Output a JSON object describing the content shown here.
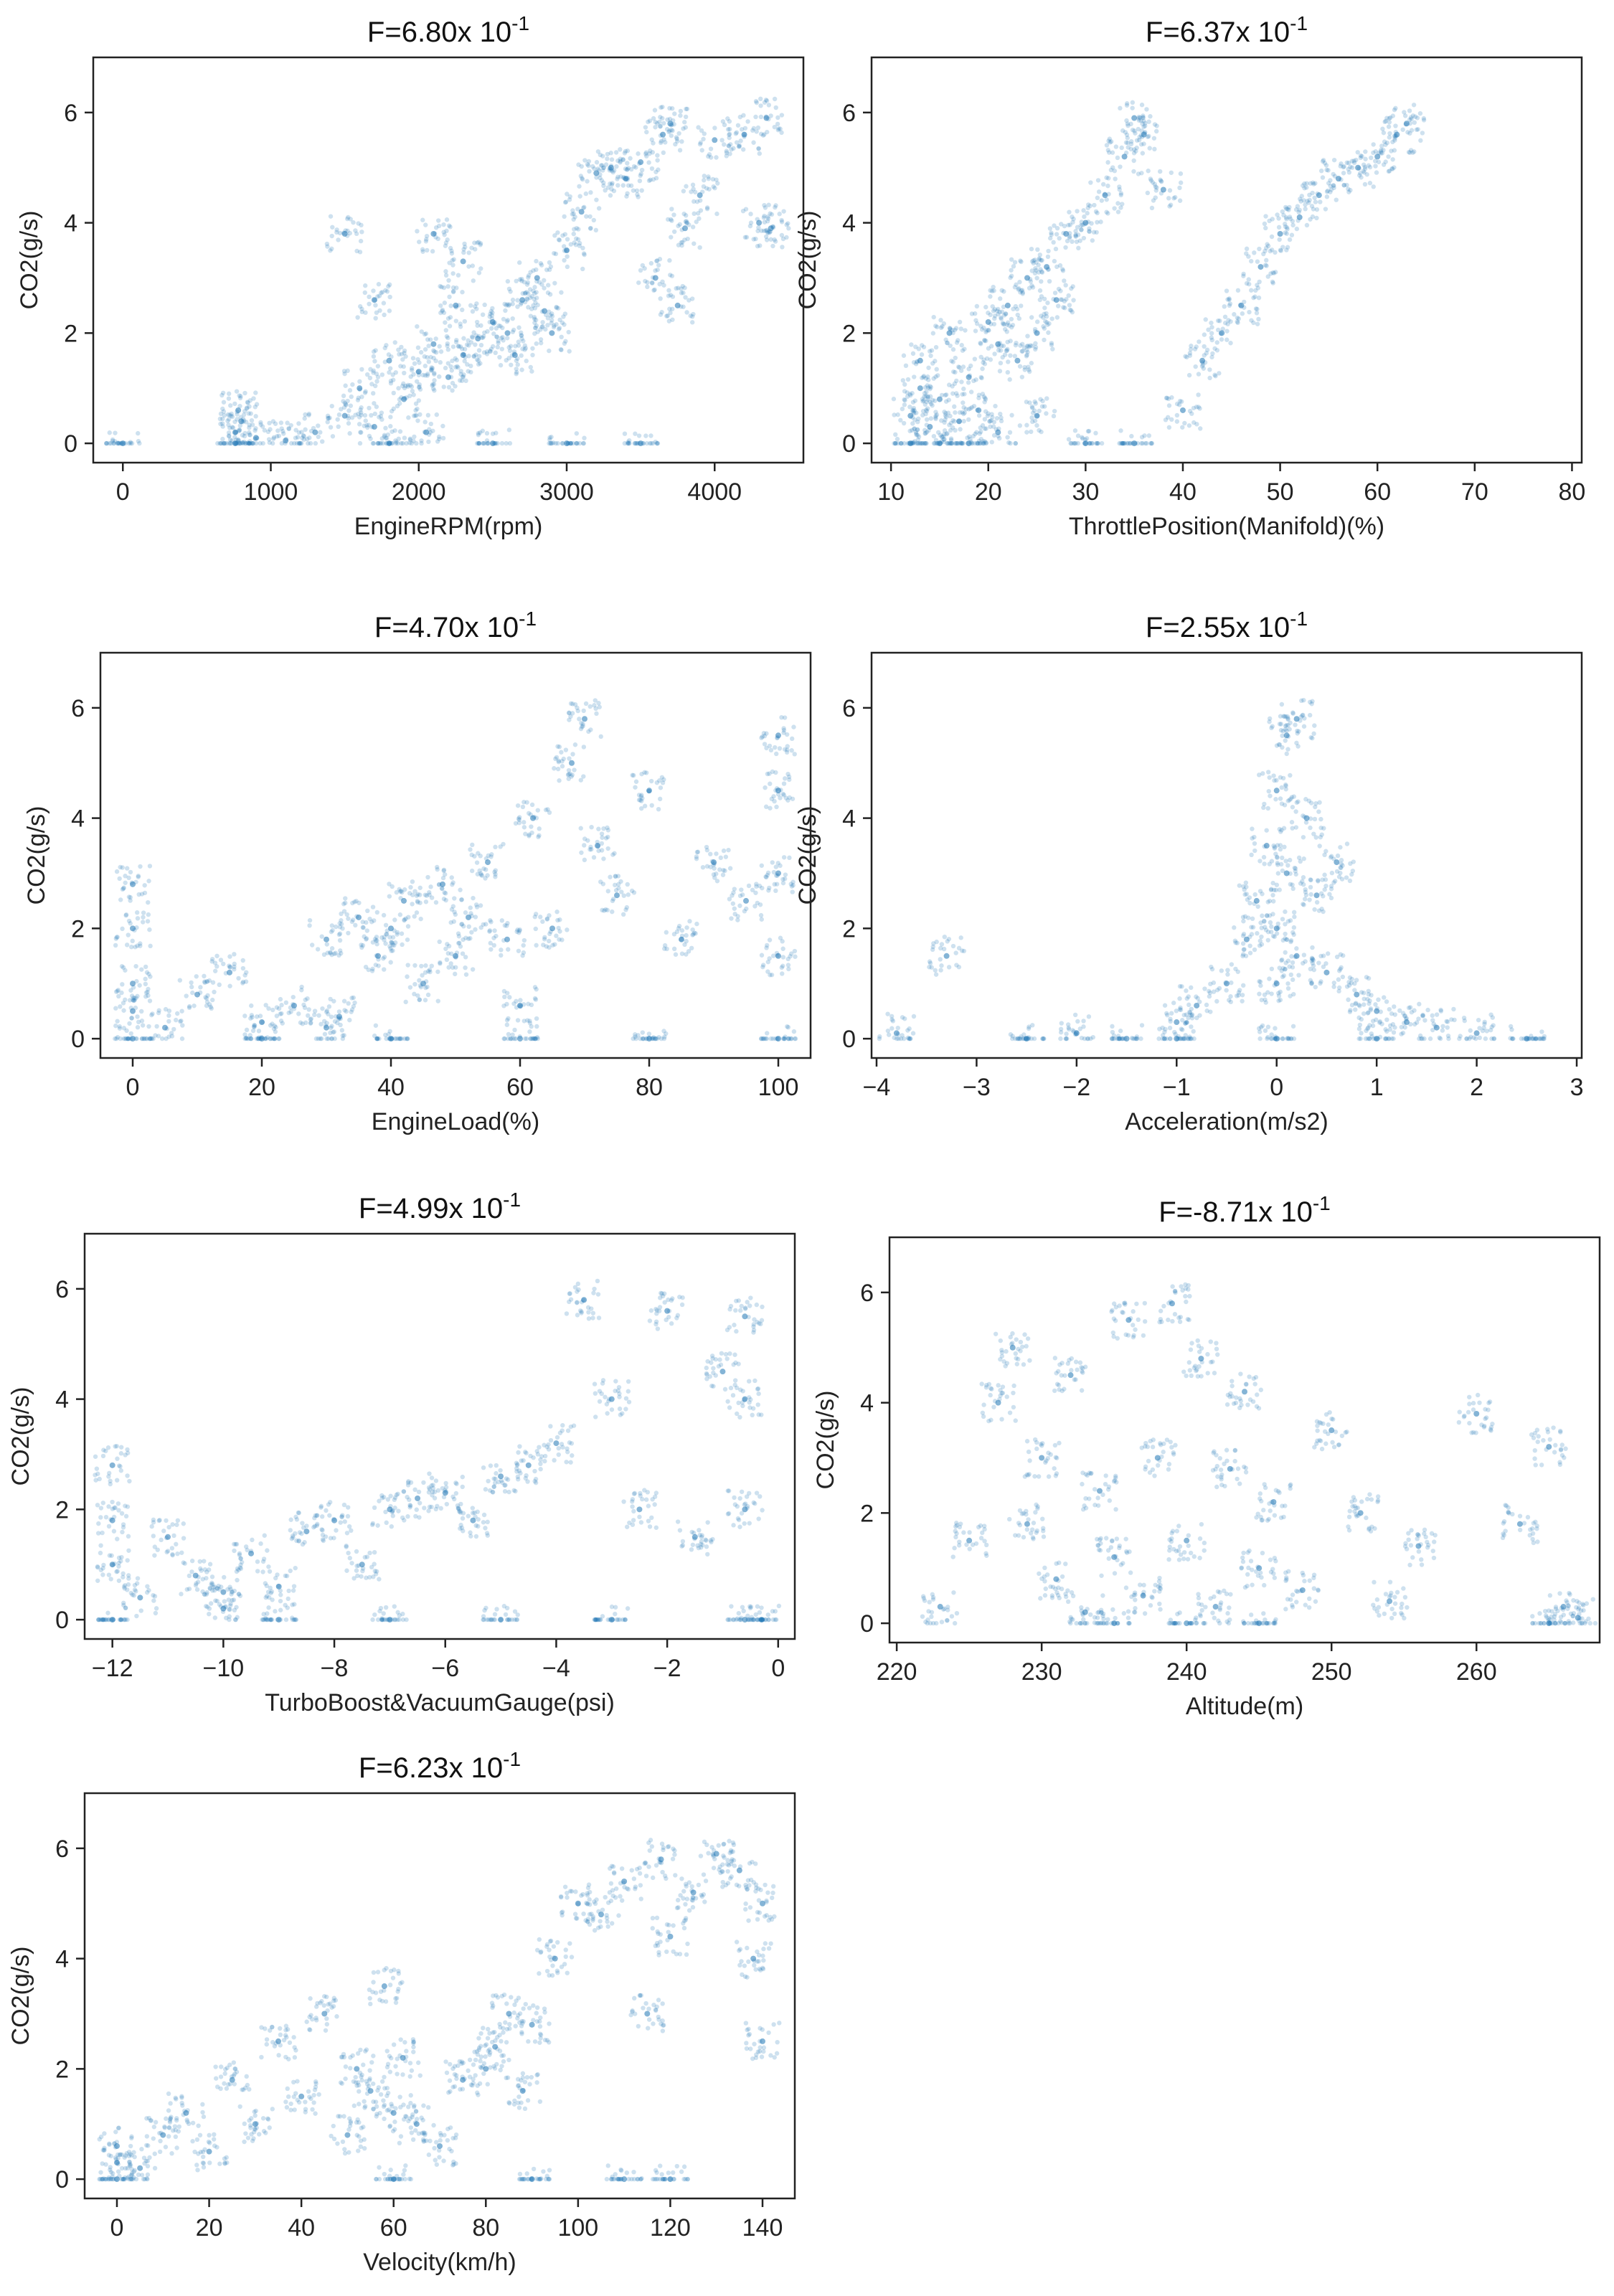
{
  "colors": {
    "points": "#1f77b4",
    "axes": "#222222",
    "background": "#ffffff"
  },
  "ylabel": "CO2(g/s)",
  "chart_data": [
    {
      "type": "scatter",
      "title": "F=6.80",
      "title_suffix": "x 10",
      "title_exponent": "-1",
      "xlabel": "EngineRPM(rpm)",
      "ylabel": "CO2(g/s)",
      "xlim": [
        -200,
        4600
      ],
      "ylim": [
        -0.35,
        7.0
      ],
      "xticks": [
        0,
        1000,
        2000,
        3000,
        4000
      ],
      "yticks": [
        0,
        2,
        4,
        6
      ],
      "points": [
        [
          0,
          0
        ],
        [
          760,
          0
        ],
        [
          760,
          0.2
        ],
        [
          800,
          0.4
        ],
        [
          780,
          0.6
        ],
        [
          900,
          0.1
        ],
        [
          1100,
          0.05
        ],
        [
          1300,
          0.2
        ],
        [
          1500,
          0.5
        ],
        [
          1600,
          1.0
        ],
        [
          1700,
          0.3
        ],
        [
          1800,
          1.5
        ],
        [
          1900,
          0.8
        ],
        [
          2000,
          1.3
        ],
        [
          2050,
          0.2
        ],
        [
          2100,
          1.8
        ],
        [
          2200,
          1.2
        ],
        [
          2250,
          2.5
        ],
        [
          2300,
          1.6
        ],
        [
          2400,
          1.9
        ],
        [
          2500,
          2.2
        ],
        [
          2600,
          2.0
        ],
        [
          2650,
          1.6
        ],
        [
          2700,
          2.6
        ],
        [
          2800,
          3.0
        ],
        [
          2850,
          2.4
        ],
        [
          2900,
          2.0
        ],
        [
          3000,
          3.5
        ],
        [
          3100,
          4.2
        ],
        [
          3200,
          4.9
        ],
        [
          3300,
          5.0
        ],
        [
          3400,
          4.8
        ],
        [
          3500,
          5.1
        ],
        [
          3600,
          3.0
        ],
        [
          3650,
          5.6
        ],
        [
          3700,
          5.8
        ],
        [
          3750,
          2.5
        ],
        [
          3800,
          3.9
        ],
        [
          3900,
          4.5
        ],
        [
          4000,
          5.5
        ],
        [
          4200,
          5.6
        ],
        [
          4300,
          4.0
        ],
        [
          4350,
          5.9
        ],
        [
          4380,
          3.9
        ],
        [
          1500,
          3.8
        ],
        [
          1700,
          2.6
        ],
        [
          2100,
          3.8
        ],
        [
          2300,
          3.3
        ],
        [
          3000,
          0
        ],
        [
          3500,
          0
        ],
        [
          2500,
          0
        ],
        [
          1800,
          0
        ]
      ],
      "noise_seed": 11
    },
    {
      "type": "scatter",
      "title": "F=6.37",
      "title_suffix": "x 10",
      "title_exponent": "-1",
      "xlabel": "ThrottlePosition(Manifold)(%)",
      "ylabel": "CO2(g/s)",
      "xlim": [
        8,
        81
      ],
      "ylim": [
        -0.35,
        7.0
      ],
      "xticks": [
        10,
        20,
        30,
        40,
        50,
        60,
        70,
        80
      ],
      "yticks": [
        0,
        2,
        4,
        6
      ],
      "points": [
        [
          12,
          0
        ],
        [
          12,
          0.5
        ],
        [
          13,
          1.5
        ],
        [
          13,
          1.0
        ],
        [
          14,
          0.3
        ],
        [
          15,
          0.8
        ],
        [
          16,
          2.0
        ],
        [
          17,
          0.4
        ],
        [
          18,
          1.2
        ],
        [
          19,
          0.6
        ],
        [
          20,
          2.2
        ],
        [
          21,
          1.8
        ],
        [
          21,
          0.2
        ],
        [
          22,
          2.5
        ],
        [
          23,
          1.5
        ],
        [
          24,
          3.0
        ],
        [
          25,
          2.0
        ],
        [
          26,
          3.2
        ],
        [
          27,
          2.6
        ],
        [
          28,
          3.8
        ],
        [
          30,
          4.0
        ],
        [
          32,
          4.5
        ],
        [
          34,
          5.2
        ],
        [
          35,
          5.9
        ],
        [
          36,
          5.6
        ],
        [
          38,
          4.6
        ],
        [
          40,
          0.6
        ],
        [
          42,
          1.5
        ],
        [
          44,
          2.0
        ],
        [
          46,
          2.5
        ],
        [
          48,
          3.2
        ],
        [
          50,
          3.8
        ],
        [
          52,
          4.1
        ],
        [
          54,
          4.5
        ],
        [
          56,
          4.8
        ],
        [
          58,
          5.0
        ],
        [
          60,
          5.2
        ],
        [
          62,
          5.6
        ],
        [
          63,
          5.8
        ],
        [
          30,
          0
        ],
        [
          35,
          0
        ],
        [
          25,
          0.5
        ],
        [
          18,
          0
        ],
        [
          15,
          0
        ]
      ],
      "noise_seed": 23
    },
    {
      "type": "scatter",
      "title": "F=4.70",
      "title_suffix": "x 10",
      "title_exponent": "-1",
      "xlabel": "EngineLoad(%)",
      "ylabel": "CO2(g/s)",
      "xlim": [
        -5,
        105
      ],
      "ylim": [
        -0.35,
        7.0
      ],
      "xticks": [
        0,
        20,
        40,
        60,
        80,
        100
      ],
      "yticks": [
        0,
        2,
        4,
        6
      ],
      "points": [
        [
          0,
          0
        ],
        [
          0,
          1.0
        ],
        [
          0,
          2.0
        ],
        [
          0,
          2.8
        ],
        [
          0,
          0.5
        ],
        [
          5,
          0.2
        ],
        [
          10,
          0.8
        ],
        [
          15,
          1.2
        ],
        [
          20,
          0.3
        ],
        [
          25,
          0.6
        ],
        [
          30,
          0.2
        ],
        [
          30,
          1.8
        ],
        [
          32,
          0.4
        ],
        [
          35,
          2.2
        ],
        [
          38,
          1.5
        ],
        [
          40,
          2.0
        ],
        [
          42,
          2.5
        ],
        [
          45,
          1.0
        ],
        [
          48,
          2.8
        ],
        [
          50,
          1.5
        ],
        [
          52,
          2.2
        ],
        [
          55,
          3.2
        ],
        [
          58,
          1.8
        ],
        [
          60,
          0.6
        ],
        [
          62,
          4.0
        ],
        [
          65,
          2.0
        ],
        [
          68,
          5.0
        ],
        [
          70,
          5.8
        ],
        [
          72,
          3.5
        ],
        [
          75,
          2.6
        ],
        [
          80,
          4.5
        ],
        [
          85,
          1.8
        ],
        [
          90,
          3.2
        ],
        [
          95,
          2.5
        ],
        [
          100,
          0
        ],
        [
          100,
          1.5
        ],
        [
          100,
          3.0
        ],
        [
          100,
          4.5
        ],
        [
          100,
          5.5
        ],
        [
          20,
          0
        ],
        [
          40,
          0
        ],
        [
          60,
          0
        ],
        [
          80,
          0
        ]
      ],
      "noise_seed": 37
    },
    {
      "type": "scatter",
      "title": "F=2.55",
      "title_suffix": "x 10",
      "title_exponent": "-1",
      "xlabel": "Acceleration(m/s2)",
      "ylabel": "CO2(g/s)",
      "xlim": [
        -4.05,
        3.05
      ],
      "ylim": [
        -0.35,
        7.0
      ],
      "xticks": [
        -4,
        -3,
        -2,
        -1,
        0,
        1,
        2,
        3
      ],
      "yticks": [
        0,
        2,
        4,
        6
      ],
      "points": [
        [
          -3.8,
          0.1
        ],
        [
          -3.3,
          1.5
        ],
        [
          -2.5,
          0
        ],
        [
          -2.0,
          0.1
        ],
        [
          -1.5,
          0
        ],
        [
          -1.0,
          0.3
        ],
        [
          -0.8,
          0.6
        ],
        [
          -0.5,
          1.0
        ],
        [
          -0.3,
          1.8
        ],
        [
          -0.2,
          2.5
        ],
        [
          -0.1,
          3.5
        ],
        [
          0,
          4.5
        ],
        [
          0,
          2.0
        ],
        [
          0,
          1.0
        ],
        [
          0.1,
          5.5
        ],
        [
          0.1,
          3.0
        ],
        [
          0.2,
          1.5
        ],
        [
          0.2,
          5.8
        ],
        [
          0.3,
          4.0
        ],
        [
          0.4,
          2.6
        ],
        [
          0.5,
          1.2
        ],
        [
          0.6,
          3.2
        ],
        [
          0.8,
          0.8
        ],
        [
          1.0,
          0.5
        ],
        [
          1.3,
          0.3
        ],
        [
          1.6,
          0.2
        ],
        [
          2.0,
          0.1
        ],
        [
          2.5,
          0
        ],
        [
          0,
          0
        ],
        [
          -1.0,
          0
        ],
        [
          1.0,
          0
        ]
      ],
      "noise_seed": 41
    },
    {
      "type": "scatter",
      "title": "F=4.99",
      "title_suffix": "x 10",
      "title_exponent": "-1",
      "xlabel": "TurboBoost&VacuumGauge(psi)",
      "ylabel": "CO2(g/s)",
      "xlim": [
        -12.5,
        0.3
      ],
      "ylim": [
        -0.35,
        7.0
      ],
      "xticks": [
        -12,
        -10,
        -8,
        -6,
        -4,
        -2,
        0
      ],
      "yticks": [
        0,
        2,
        4,
        6
      ],
      "points": [
        [
          -12,
          0
        ],
        [
          -12,
          1.0
        ],
        [
          -12,
          1.8
        ],
        [
          -12,
          2.8
        ],
        [
          -11.5,
          0.4
        ],
        [
          -11,
          1.5
        ],
        [
          -10.5,
          0.8
        ],
        [
          -10,
          0.2
        ],
        [
          -10,
          0.5
        ],
        [
          -9.5,
          1.2
        ],
        [
          -9,
          0.6
        ],
        [
          -8.5,
          1.6
        ],
        [
          -8,
          1.8
        ],
        [
          -7.5,
          1.0
        ],
        [
          -7,
          2.0
        ],
        [
          -6.5,
          2.2
        ],
        [
          -6,
          2.3
        ],
        [
          -5.5,
          1.8
        ],
        [
          -5,
          2.6
        ],
        [
          -4.5,
          2.8
        ],
        [
          -4,
          3.2
        ],
        [
          -3.5,
          5.8
        ],
        [
          -3,
          4.0
        ],
        [
          -2.5,
          2.0
        ],
        [
          -2,
          5.6
        ],
        [
          -1.5,
          1.5
        ],
        [
          -1,
          4.5
        ],
        [
          -0.6,
          0
        ],
        [
          -0.6,
          2.0
        ],
        [
          -0.6,
          4.0
        ],
        [
          -0.6,
          5.5
        ],
        [
          -0.3,
          0
        ],
        [
          -9,
          0
        ],
        [
          -7,
          0
        ],
        [
          -5,
          0
        ],
        [
          -3,
          0
        ]
      ],
      "noise_seed": 53
    },
    {
      "type": "scatter",
      "title": "F=-8.71",
      "title_suffix": "x 10",
      "title_exponent": "-1",
      "xlabel": "Altitude(m)",
      "ylabel": "CO2(g/s)",
      "xlim": [
        219.5,
        268.5
      ],
      "ylim": [
        -0.35,
        7.0
      ],
      "xticks": [
        220,
        230,
        240,
        250,
        260
      ],
      "yticks": [
        0,
        2,
        4,
        6
      ],
      "points": [
        [
          223,
          0.3
        ],
        [
          225,
          1.5
        ],
        [
          227,
          4.0
        ],
        [
          228,
          5.0
        ],
        [
          229,
          1.8
        ],
        [
          230,
          3.0
        ],
        [
          231,
          0.8
        ],
        [
          232,
          4.5
        ],
        [
          233,
          0.2
        ],
        [
          234,
          2.4
        ],
        [
          235,
          1.2
        ],
        [
          236,
          5.5
        ],
        [
          237,
          0.5
        ],
        [
          238,
          3.0
        ],
        [
          239,
          5.8
        ],
        [
          240,
          1.5
        ],
        [
          241,
          4.8
        ],
        [
          242,
          0.3
        ],
        [
          243,
          2.8
        ],
        [
          244,
          4.2
        ],
        [
          245,
          1.0
        ],
        [
          246,
          2.2
        ],
        [
          248,
          0.6
        ],
        [
          250,
          3.5
        ],
        [
          252,
          2.0
        ],
        [
          254,
          0.4
        ],
        [
          256,
          1.4
        ],
        [
          260,
          3.8
        ],
        [
          263,
          1.8
        ],
        [
          265,
          3.2
        ],
        [
          265,
          0
        ],
        [
          266,
          0.3
        ],
        [
          267,
          0.1
        ],
        [
          240,
          0
        ],
        [
          235,
          0
        ],
        [
          245,
          0
        ]
      ],
      "noise_seed": 67
    },
    {
      "type": "scatter",
      "title": "F=6.23",
      "title_suffix": "x 10",
      "title_exponent": "-1",
      "xlabel": "Velocity(km/h)",
      "ylabel": "CO2(g/s)",
      "xlim": [
        -7,
        147
      ],
      "ylim": [
        -0.35,
        7.0
      ],
      "xticks": [
        0,
        20,
        40,
        60,
        80,
        100,
        120,
        140
      ],
      "yticks": [
        0,
        2,
        4,
        6
      ],
      "points": [
        [
          0,
          0
        ],
        [
          0,
          0.3
        ],
        [
          0,
          0.6
        ],
        [
          5,
          0.2
        ],
        [
          10,
          0.8
        ],
        [
          15,
          1.2
        ],
        [
          20,
          0.5
        ],
        [
          25,
          1.8
        ],
        [
          30,
          1.0
        ],
        [
          35,
          2.5
        ],
        [
          40,
          1.5
        ],
        [
          45,
          3.0
        ],
        [
          50,
          0.8
        ],
        [
          52,
          2.0
        ],
        [
          55,
          1.6
        ],
        [
          58,
          3.5
        ],
        [
          60,
          1.2
        ],
        [
          62,
          2.2
        ],
        [
          65,
          1.0
        ],
        [
          70,
          0.6
        ],
        [
          75,
          1.8
        ],
        [
          80,
          2.0
        ],
        [
          82,
          2.4
        ],
        [
          85,
          3.0
        ],
        [
          88,
          1.6
        ],
        [
          90,
          2.8
        ],
        [
          95,
          4.0
        ],
        [
          100,
          5.0
        ],
        [
          105,
          4.8
        ],
        [
          110,
          5.4
        ],
        [
          115,
          3.0
        ],
        [
          118,
          5.8
        ],
        [
          120,
          4.4
        ],
        [
          125,
          5.2
        ],
        [
          130,
          5.9
        ],
        [
          135,
          5.6
        ],
        [
          138,
          4.0
        ],
        [
          140,
          5.0
        ],
        [
          140,
          2.5
        ],
        [
          60,
          0
        ],
        [
          90,
          0
        ],
        [
          110,
          0
        ],
        [
          120,
          0
        ]
      ],
      "noise_seed": 79
    }
  ]
}
